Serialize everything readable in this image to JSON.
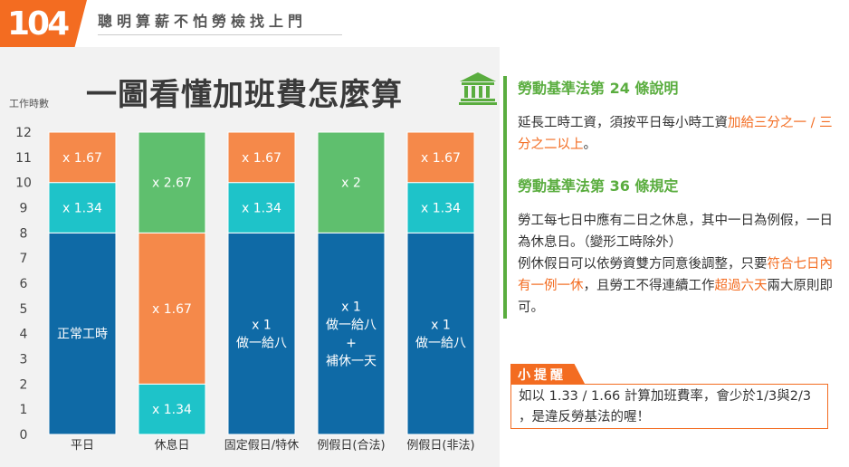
{
  "header": {
    "logo_text": "104",
    "slogan": "聰明算薪不怕勞檢找上門"
  },
  "chart_data": {
    "type": "bar",
    "stacked": true,
    "title": "一圖看懂加班費怎麼算",
    "ylabel": "工作時數",
    "xlabel": "",
    "ylim": [
      0,
      12
    ],
    "yticks": [
      0,
      1,
      2,
      3,
      4,
      5,
      6,
      7,
      8,
      9,
      10,
      11,
      12
    ],
    "categories": [
      "平日",
      "休息日",
      "固定假日/特休",
      "例假日(合法)",
      "例假日(非法)"
    ],
    "bars": [
      {
        "segments": [
          {
            "from": 0,
            "to": 8,
            "color": "#0f6aa6",
            "label": "正常工時"
          },
          {
            "from": 8,
            "to": 10,
            "color": "#1ec3c9",
            "label": "x 1.34"
          },
          {
            "from": 10,
            "to": 12,
            "color": "#f5894a",
            "label": "x 1.67"
          }
        ]
      },
      {
        "segments": [
          {
            "from": 0,
            "to": 2,
            "color": "#1ec3c9",
            "label": "x 1.34"
          },
          {
            "from": 2,
            "to": 8,
            "color": "#f5894a",
            "label": "x 1.67"
          },
          {
            "from": 8,
            "to": 12,
            "color": "#5fbf6e",
            "label": "x 2.67"
          }
        ]
      },
      {
        "segments": [
          {
            "from": 0,
            "to": 8,
            "color": "#0f6aa6",
            "label": "x 1\n做一給八"
          },
          {
            "from": 8,
            "to": 10,
            "color": "#1ec3c9",
            "label": "x 1.34"
          },
          {
            "from": 10,
            "to": 12,
            "color": "#f5894a",
            "label": "x 1.67"
          }
        ]
      },
      {
        "segments": [
          {
            "from": 0,
            "to": 8,
            "color": "#0f6aa6",
            "label": "x 1\n做一給八\n+\n補休一天"
          },
          {
            "from": 8,
            "to": 12,
            "color": "#5fbf6e",
            "label": "x 2"
          }
        ]
      },
      {
        "segments": [
          {
            "from": 0,
            "to": 8,
            "color": "#0f6aa6",
            "label": "x 1\n做一給八"
          },
          {
            "from": 8,
            "to": 10,
            "color": "#1ec3c9",
            "label": "x 1.34"
          },
          {
            "from": 10,
            "to": 12,
            "color": "#f5894a",
            "label": "x 1.67"
          }
        ]
      }
    ]
  },
  "icons": {
    "law": "bank-building-icon"
  },
  "law24": {
    "title": "勞動基準法第 24 條說明",
    "text_a": "延長工時工資，須按平日每小時工資",
    "text_hl": "加給三分之一 / 三分之二以上",
    "text_b": "。"
  },
  "law36": {
    "title": "勞動基準法第 36 條規定",
    "text_a": "勞工每七日中應有二日之休息，其中一日為例假，一日為休息日。（變形工時除外）",
    "text_b": "例休假日可以依勞資雙方同意後調整，只要",
    "text_hl1": "符合七日內有一例一休",
    "text_c": "，且勞工不得連續工作",
    "text_hl2": "超過六天",
    "text_d": "兩大原則即可。"
  },
  "tip": {
    "label": "小提醒",
    "text": "如以 1.33 / 1.66 計算加班費率，會少於1/3與2/3 ，是違反勞基法的喔！"
  },
  "colors": {
    "brand": "#f36c21",
    "accent_green": "#5aad3f",
    "normal_blue": "#0f6aa6",
    "teal": "#1ec3c9",
    "orange": "#f5894a",
    "green": "#5fbf6e"
  }
}
